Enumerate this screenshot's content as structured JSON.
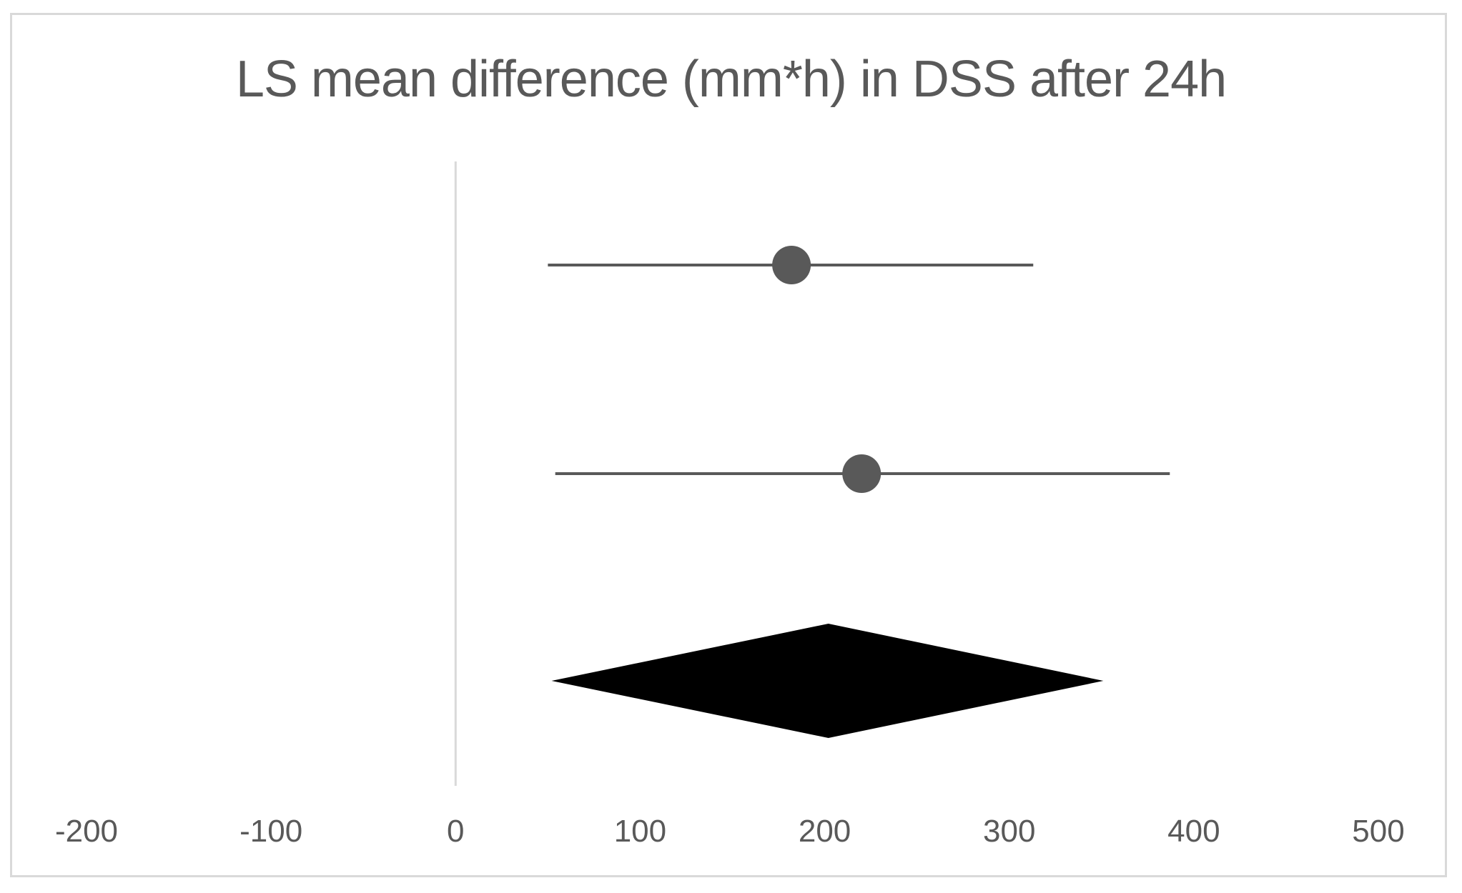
{
  "chart_data": {
    "type": "forest",
    "title": "LS mean difference (mm*h) in DSS after 24h",
    "xlabel": "",
    "ylabel": "",
    "xlim": [
      -200,
      500
    ],
    "x_ticks": [
      -200,
      -100,
      0,
      100,
      200,
      300,
      400,
      500
    ],
    "reference_line": 0,
    "grid": false,
    "legend": "none",
    "studies": [
      {
        "estimate": 182,
        "ci_lower": 50,
        "ci_upper": 313
      },
      {
        "estimate": 220,
        "ci_lower": 54,
        "ci_upper": 387
      }
    ],
    "pooled": {
      "estimate": 202,
      "ci_lower": 52,
      "ci_upper": 351
    },
    "colors": {
      "point": "#595959",
      "ci_line": "#595959",
      "pooled": "#000000",
      "reference_line": "#d9d9d9",
      "text": "#595959"
    }
  }
}
